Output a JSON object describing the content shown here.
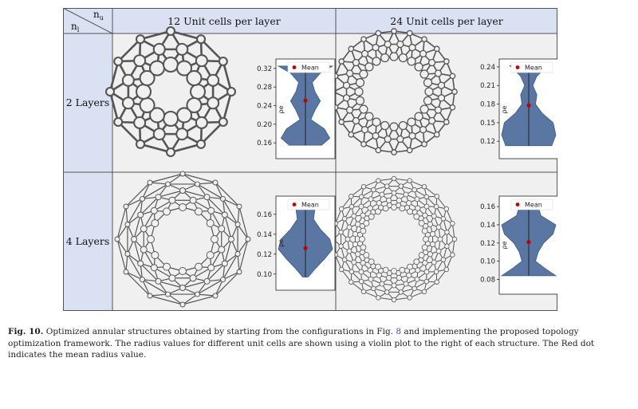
{
  "table": {
    "corner_top": "n",
    "corner_top_sub": "u",
    "corner_bottom": "n",
    "corner_bottom_sub": "l",
    "col_headers": [
      "12 Unit cells per layer",
      "24 Unit cells per layer"
    ],
    "row_headers": [
      "2 Layers",
      "4 Layers"
    ]
  },
  "colors": {
    "header_bg": "#d9e1f2",
    "cell_bg": "#f0f0f0",
    "structure": "#555555",
    "violin": "#5a77a3",
    "mean": "#c00000",
    "link": "#2a5db0"
  },
  "structures": [
    {
      "cells": 12,
      "layers": 2,
      "shape": "ring-of-links"
    },
    {
      "cells": 24,
      "layers": 2,
      "shape": "ring-of-links"
    },
    {
      "cells": 12,
      "layers": 4,
      "shape": "ring-of-links"
    },
    {
      "cells": 24,
      "layers": 4,
      "shape": "ring-of-links"
    }
  ],
  "chart_data": [
    {
      "type": "violin",
      "panel": "12 unit cells, 2 layers",
      "ylabel": "ρe",
      "ylim": [
        0.15,
        0.33
      ],
      "ticks": [
        0.16,
        0.2,
        0.24,
        0.28,
        0.32
      ],
      "tick_labels": [
        "0.16",
        "0.20",
        "0.24",
        "0.28",
        "0.32"
      ],
      "y_min": 0.155,
      "y_max": 0.325,
      "mean": 0.251,
      "legend": [
        "Mean"
      ],
      "profile": [
        [
          0.155,
          0.6
        ],
        [
          0.17,
          0.9
        ],
        [
          0.19,
          0.7
        ],
        [
          0.21,
          0.2
        ],
        [
          0.23,
          0.35
        ],
        [
          0.25,
          0.55
        ],
        [
          0.27,
          0.35
        ],
        [
          0.29,
          0.25
        ],
        [
          0.31,
          0.55
        ],
        [
          0.325,
          1.0
        ]
      ]
    },
    {
      "type": "violin",
      "panel": "24 unit cells, 2 layers",
      "ylabel": "ρe",
      "ylim": [
        0.11,
        0.245
      ],
      "ticks": [
        0.12,
        0.15,
        0.18,
        0.21,
        0.24
      ],
      "tick_labels": [
        "0.12",
        "0.15",
        "0.18",
        "0.21",
        "0.24"
      ],
      "y_min": 0.113,
      "y_max": 0.242,
      "mean": 0.178,
      "legend": [
        "Mean"
      ],
      "profile": [
        [
          0.113,
          0.85
        ],
        [
          0.13,
          1.0
        ],
        [
          0.15,
          0.9
        ],
        [
          0.165,
          0.5
        ],
        [
          0.18,
          0.25
        ],
        [
          0.195,
          0.3
        ],
        [
          0.21,
          0.15
        ],
        [
          0.225,
          0.3
        ],
        [
          0.242,
          0.7
        ]
      ]
    },
    {
      "type": "violin",
      "panel": "12 unit cells, 4 layers",
      "ylabel": "ρe",
      "ylim": [
        0.095,
        0.175
      ],
      "ticks": [
        0.1,
        0.12,
        0.14,
        0.16
      ],
      "tick_labels": [
        "0.10",
        "0.12",
        "0.14",
        "0.16"
      ],
      "y_min": 0.097,
      "y_max": 0.172,
      "mean": 0.126,
      "legend": [
        "Mean"
      ],
      "profile": [
        [
          0.097,
          0.1
        ],
        [
          0.105,
          0.35
        ],
        [
          0.115,
          0.7
        ],
        [
          0.125,
          1.0
        ],
        [
          0.135,
          0.9
        ],
        [
          0.145,
          0.55
        ],
        [
          0.155,
          0.3
        ],
        [
          0.165,
          0.35
        ],
        [
          0.172,
          0.55
        ]
      ]
    },
    {
      "type": "violin",
      "panel": "24 unit cells, 4 layers",
      "ylabel": "ρe",
      "ylim": [
        0.076,
        0.168
      ],
      "ticks": [
        0.08,
        0.1,
        0.12,
        0.14,
        0.16
      ],
      "tick_labels": [
        "0.08",
        "0.10",
        "0.12",
        "0.14",
        "0.16"
      ],
      "y_min": 0.084,
      "y_max": 0.165,
      "mean": 0.121,
      "legend": [
        "Mean"
      ],
      "profile": [
        [
          0.084,
          1.0
        ],
        [
          0.092,
          0.6
        ],
        [
          0.1,
          0.25
        ],
        [
          0.11,
          0.35
        ],
        [
          0.12,
          0.55
        ],
        [
          0.13,
          0.9
        ],
        [
          0.14,
          1.0
        ],
        [
          0.15,
          0.45
        ],
        [
          0.165,
          0.3
        ]
      ]
    }
  ],
  "caption": {
    "label": "Fig. 10.",
    "text_before_ref": " Optimized annular structures obtained by starting from the configurations in Fig. ",
    "ref": "8",
    "text_after_ref": " and implementing the proposed topology optimization framework. The radius values for different unit cells are shown using a violin plot to the right of each structure. The Red dot indicates the mean radius value."
  }
}
